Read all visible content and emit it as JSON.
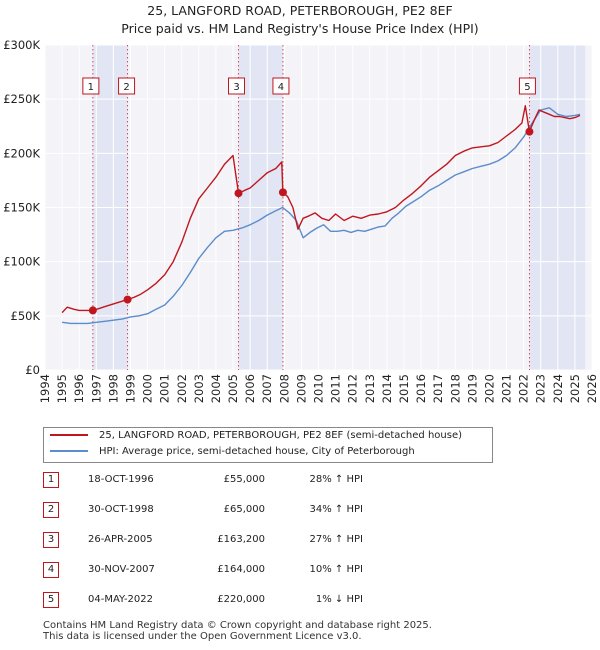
{
  "chart_data": {
    "type": "line",
    "title": "25, LANGFORD ROAD, PETERBOROUGH, PE2 8EF",
    "subtitle": "Price paid vs. HM Land Registry's House Price Index (HPI)",
    "xlim": [
      1994,
      2026
    ],
    "ylim": [
      0,
      300000
    ],
    "x_ticks": [
      "1994",
      "1995",
      "1996",
      "1997",
      "1998",
      "1999",
      "2000",
      "2001",
      "2002",
      "2003",
      "2004",
      "2005",
      "2006",
      "2007",
      "2008",
      "2009",
      "2010",
      "2011",
      "2012",
      "2013",
      "2014",
      "2015",
      "2016",
      "2017",
      "2018",
      "2019",
      "2020",
      "2021",
      "2022",
      "2023",
      "2024",
      "2025",
      "2026"
    ],
    "y_ticks": [
      {
        "value": 0,
        "label": "£0"
      },
      {
        "value": 50000,
        "label": "£50K"
      },
      {
        "value": 100000,
        "label": "£100K"
      },
      {
        "value": 150000,
        "label": "£150K"
      },
      {
        "value": 200000,
        "label": "£200K"
      },
      {
        "value": 250000,
        "label": "£250K"
      },
      {
        "value": 300000,
        "label": "£300K"
      }
    ],
    "grid": true,
    "shaded_periods": [
      [
        1996.8,
        1998.83
      ],
      [
        2005.32,
        2007.92
      ],
      [
        2022.34,
        2025.6
      ]
    ],
    "series": [
      {
        "name": "25, LANGFORD ROAD, PETERBOROUGH, PE2 8EF (semi-detached house)",
        "color": "#c0161e",
        "x": [
          1995.0,
          1995.3,
          1995.7,
          1996.0,
          1996.4,
          1996.8,
          1997.2,
          1997.6,
          1998.0,
          1998.4,
          1998.83,
          1999.2,
          1999.6,
          2000.0,
          2000.5,
          2001.0,
          2001.5,
          2002.0,
          2002.5,
          2003.0,
          2003.5,
          2004.0,
          2004.5,
          2005.0,
          2005.32,
          2005.7,
          2006.0,
          2006.5,
          2007.0,
          2007.5,
          2007.85,
          2007.92,
          2008.2,
          2008.5,
          2008.8,
          2009.1,
          2009.4,
          2009.8,
          2010.2,
          2010.6,
          2011.0,
          2011.5,
          2012.0,
          2012.5,
          2013.0,
          2013.5,
          2014.0,
          2014.5,
          2015.0,
          2015.5,
          2016.0,
          2016.5,
          2017.0,
          2017.5,
          2018.0,
          2018.5,
          2019.0,
          2019.5,
          2020.0,
          2020.5,
          2021.0,
          2021.5,
          2021.9,
          2022.1,
          2022.34,
          2022.6,
          2022.9,
          2023.2,
          2023.5,
          2023.8,
          2024.1,
          2024.4,
          2024.7,
          2025.0,
          2025.3
        ],
        "values": [
          53000,
          58000,
          56000,
          55000,
          55000,
          55000,
          57000,
          59000,
          61000,
          63000,
          65000,
          67000,
          70000,
          74000,
          80000,
          88000,
          100000,
          118000,
          140000,
          158000,
          168000,
          178000,
          190000,
          198000,
          163200,
          166000,
          168000,
          175000,
          182000,
          186000,
          192000,
          164000,
          160000,
          150000,
          130000,
          140000,
          142000,
          145000,
          140000,
          138000,
          144000,
          138000,
          142000,
          140000,
          143000,
          144000,
          146000,
          150000,
          157000,
          163000,
          170000,
          178000,
          184000,
          190000,
          198000,
          202000,
          205000,
          206000,
          207000,
          210000,
          216000,
          222000,
          228000,
          244000,
          220000,
          230000,
          240000,
          238000,
          236000,
          234000,
          234000,
          233000,
          232000,
          233000,
          235000
        ]
      },
      {
        "name": "HPI: Average price, semi-detached house, City of Peterborough",
        "color": "#5b8ccc",
        "x": [
          1995.0,
          1995.5,
          1996.0,
          1996.5,
          1997.0,
          1997.5,
          1998.0,
          1998.5,
          1999.0,
          1999.5,
          2000.0,
          2000.5,
          2001.0,
          2001.5,
          2002.0,
          2002.5,
          2003.0,
          2003.5,
          2004.0,
          2004.5,
          2005.0,
          2005.5,
          2006.0,
          2006.5,
          2007.0,
          2007.5,
          2007.9,
          2008.3,
          2008.7,
          2009.1,
          2009.5,
          2009.9,
          2010.3,
          2010.7,
          2011.1,
          2011.5,
          2011.9,
          2012.3,
          2012.7,
          2013.1,
          2013.5,
          2013.9,
          2014.3,
          2014.7,
          2015.1,
          2015.5,
          2016.0,
          2016.5,
          2017.0,
          2017.5,
          2018.0,
          2018.5,
          2019.0,
          2019.5,
          2020.0,
          2020.5,
          2021.0,
          2021.5,
          2022.0,
          2022.5,
          2023.0,
          2023.5,
          2024.0,
          2024.5,
          2025.0,
          2025.3
        ],
        "values": [
          44000,
          43000,
          43000,
          43000,
          44000,
          45000,
          46000,
          47000,
          49000,
          50000,
          52000,
          56000,
          60000,
          68000,
          78000,
          90000,
          103000,
          113000,
          122000,
          128000,
          129000,
          131000,
          134000,
          138000,
          143000,
          147000,
          150000,
          145000,
          138000,
          122000,
          127000,
          131000,
          134000,
          128000,
          128000,
          129000,
          127000,
          129000,
          128000,
          130000,
          132000,
          133000,
          140000,
          145000,
          151000,
          155000,
          160000,
          166000,
          170000,
          175000,
          180000,
          183000,
          186000,
          188000,
          190000,
          193000,
          198000,
          205000,
          215000,
          228000,
          240000,
          242000,
          236000,
          234000,
          235000,
          236000
        ]
      }
    ],
    "sales": [
      {
        "label": "1",
        "x": 1996.8,
        "value": 55000
      },
      {
        "label": "2",
        "x": 1998.83,
        "value": 65000
      },
      {
        "label": "3",
        "x": 2005.32,
        "value": 163200
      },
      {
        "label": "4",
        "x": 2007.92,
        "value": 164000
      },
      {
        "label": "5",
        "x": 2022.34,
        "value": 220000
      }
    ]
  },
  "legend": {
    "property": "25, LANGFORD ROAD, PETERBOROUGH, PE2 8EF (semi-detached house)",
    "hpi": "HPI: Average price, semi-detached house, City of Peterborough"
  },
  "transactions": [
    {
      "num": "1",
      "date": "18-OCT-1996",
      "price": "£55,000",
      "hpi": "28% ↑ HPI"
    },
    {
      "num": "2",
      "date": "30-OCT-1998",
      "price": "£65,000",
      "hpi": "34% ↑ HPI"
    },
    {
      "num": "3",
      "date": "26-APR-2005",
      "price": "£163,200",
      "hpi": "27% ↑ HPI"
    },
    {
      "num": "4",
      "date": "30-NOV-2007",
      "price": "£164,000",
      "hpi": "10% ↑ HPI"
    },
    {
      "num": "5",
      "date": "04-MAY-2022",
      "price": "£220,000",
      "hpi": "1% ↓ HPI"
    }
  ],
  "footer": {
    "line1": "Contains HM Land Registry data © Crown copyright and database right 2025.",
    "line2": "This data is licensed under the Open Government Licence v3.0."
  }
}
